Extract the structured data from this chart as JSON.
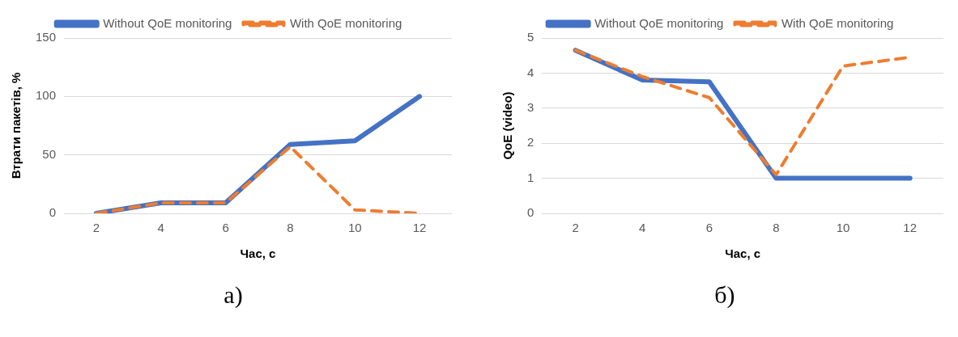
{
  "chart_data": [
    {
      "type": "line",
      "xlabel": "Час, с",
      "ylabel": "Втрати пакетів, %",
      "categories": [
        "2",
        "4",
        "6",
        "8",
        "10",
        "12"
      ],
      "series": [
        {
          "name": "Without QoE monitoring",
          "color": "#4472c4",
          "line_style": "solid",
          "values": [
            0,
            9,
            9,
            59,
            62,
            100
          ]
        },
        {
          "name": "With QoE monitoring",
          "color": "#ed7d31",
          "line_style": "dashed",
          "values": [
            0,
            9,
            9,
            57,
            3,
            0
          ]
        }
      ],
      "ylim": [
        0,
        150
      ],
      "yticks": [
        0,
        50,
        100,
        150
      ],
      "grid": "y",
      "legend": "top",
      "annotations": [
        "а)"
      ]
    },
    {
      "type": "line",
      "xlabel": "Час, с",
      "ylabel": "QoE (video)",
      "categories": [
        "2",
        "4",
        "6",
        "8",
        "10",
        "12"
      ],
      "series": [
        {
          "name": "Without QoE monitoring",
          "color": "#4472c4",
          "line_style": "solid",
          "values": [
            4.65,
            3.8,
            3.75,
            1,
            1,
            1
          ]
        },
        {
          "name": "With QoE monitoring",
          "color": "#ed7d31",
          "line_style": "dashed",
          "values": [
            4.65,
            3.9,
            3.3,
            1.1,
            4.2,
            4.45
          ]
        }
      ],
      "ylim": [
        0,
        5
      ],
      "yticks": [
        0,
        1,
        2,
        3,
        4,
        5
      ],
      "grid": "y",
      "legend": "top",
      "annotations": [
        "б)"
      ]
    }
  ]
}
